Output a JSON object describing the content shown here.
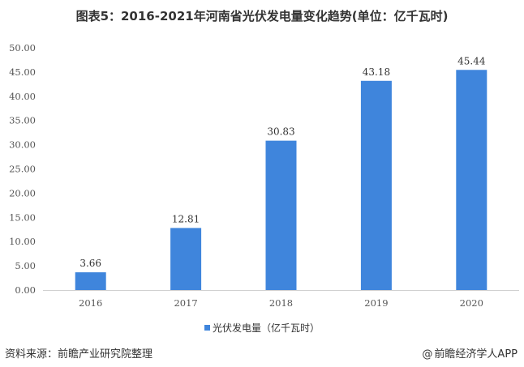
{
  "chart_data": {
    "type": "bar",
    "title": "图表5：2016-2021年河南省光伏发电量变化趋势(单位：亿千瓦时)",
    "categories": [
      "2016",
      "2017",
      "2018",
      "2019",
      "2020"
    ],
    "series": [
      {
        "name": "光伏发电量（亿千瓦时）",
        "values": [
          3.66,
          12.81,
          30.83,
          43.18,
          45.44
        ]
      }
    ],
    "data_labels": [
      "3.66",
      "12.81",
      "30.83",
      "43.18",
      "45.44"
    ],
    "yticks": [
      "0.00",
      "5.00",
      "10.00",
      "15.00",
      "20.00",
      "25.00",
      "30.00",
      "35.00",
      "40.00",
      "45.00",
      "50.00"
    ],
    "ylim": [
      0,
      50
    ],
    "xlabel": "",
    "ylabel": "",
    "grid": false,
    "legend_position": "bottom",
    "bar_color": "#3f85dc"
  },
  "footer": {
    "source": "资料来源：前瞻产业研究院整理",
    "brand_at": "@",
    "brand": "前瞻经济学人APP"
  }
}
